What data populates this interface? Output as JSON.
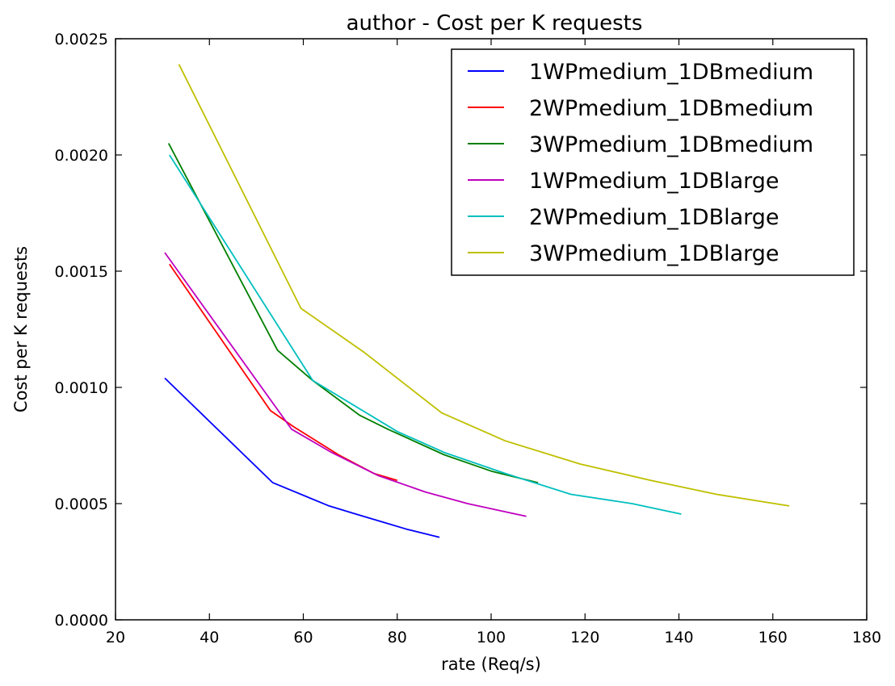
{
  "chart_data": {
    "type": "line",
    "title": "author  - Cost per K requests",
    "xlabel": "rate (Req/s)",
    "ylabel": "Cost per K requests",
    "xlim": [
      20,
      180
    ],
    "ylim": [
      0,
      0.0025
    ],
    "xticks": [
      "20",
      "40",
      "60",
      "80",
      "100",
      "120",
      "140",
      "160",
      "180"
    ],
    "yticks": [
      "0.0000",
      "0.0005",
      "0.0010",
      "0.0015",
      "0.0020",
      "0.0025"
    ],
    "grid": false,
    "legend_position": "top-right",
    "series": [
      {
        "name": "1WPmedium_1DBmedium",
        "color": "#0000ff",
        "points": [
          [
            30.5,
            0.00104
          ],
          [
            53.5,
            0.00059
          ],
          [
            65.5,
            0.00049
          ],
          [
            72,
            0.00045
          ],
          [
            77,
            0.00042
          ],
          [
            82,
            0.00039
          ],
          [
            89,
            0.000355
          ]
        ]
      },
      {
        "name": "2WPmedium_1DBmedium",
        "color": "#ff0000",
        "points": [
          [
            31.5,
            0.00153
          ],
          [
            53,
            0.0009
          ],
          [
            58,
            0.00083
          ],
          [
            67.5,
            0.00071
          ],
          [
            75,
            0.00063
          ],
          [
            80,
            0.0006
          ]
        ]
      },
      {
        "name": "3WPmedium_1DBmedium",
        "color": "#007f00",
        "points": [
          [
            31.3,
            0.00205
          ],
          [
            54.5,
            0.00116
          ],
          [
            62,
            0.00103
          ],
          [
            72,
            0.00088
          ],
          [
            78,
            0.00082
          ],
          [
            90,
            0.00071
          ],
          [
            100,
            0.00064
          ],
          [
            110,
            0.00059
          ]
        ]
      },
      {
        "name": "1WPmedium_1DBlarge",
        "color": "#bf00bf",
        "points": [
          [
            30.5,
            0.00158
          ],
          [
            57.5,
            0.00082
          ],
          [
            66,
            0.00072
          ],
          [
            76,
            0.00062
          ],
          [
            86,
            0.00055
          ],
          [
            95,
            0.0005
          ],
          [
            107.5,
            0.000445
          ]
        ]
      },
      {
        "name": "2WPmedium_1DBlarge",
        "color": "#00bfbf",
        "points": [
          [
            31.5,
            0.002
          ],
          [
            62,
            0.00103
          ],
          [
            80,
            0.00081
          ],
          [
            90,
            0.00072
          ],
          [
            103,
            0.00063
          ],
          [
            117,
            0.00054
          ],
          [
            130,
            0.0005
          ],
          [
            140.5,
            0.000455
          ]
        ]
      },
      {
        "name": "3WPmedium_1DBlarge",
        "color": "#bfbf00",
        "points": [
          [
            33.5,
            0.00239
          ],
          [
            59.5,
            0.00134
          ],
          [
            73,
            0.00115
          ],
          [
            89.5,
            0.00089
          ],
          [
            103,
            0.00077
          ],
          [
            119,
            0.00067
          ],
          [
            134,
            0.0006
          ],
          [
            148,
            0.00054
          ],
          [
            163.5,
            0.00049
          ]
        ]
      }
    ]
  }
}
